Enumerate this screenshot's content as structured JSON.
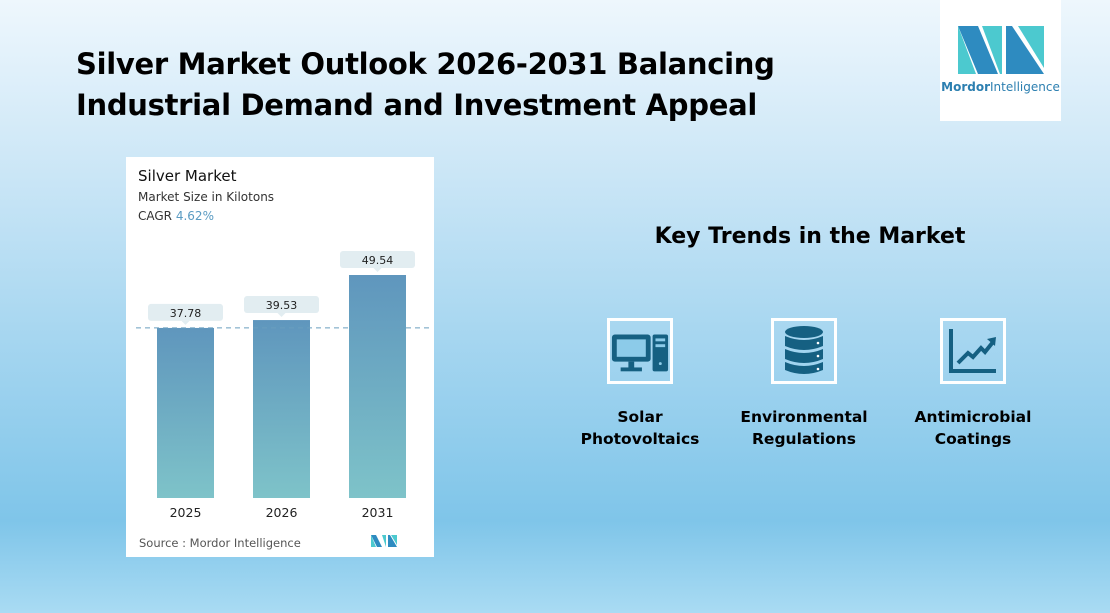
{
  "header": {
    "title_line1": "Silver Market Outlook 2026-2031 Balancing",
    "title_line2": "Industrial Demand and Investment Appeal"
  },
  "logo": {
    "text_bold": "Mordor",
    "text_light": "Intelligence"
  },
  "card": {
    "title": "Silver Market",
    "subtitle": "Market Size in Kilotons",
    "cagr_label": "CAGR",
    "cagr_value": "4.62%",
    "source": "Source :  Mordor Intelligence"
  },
  "chart_data": {
    "type": "bar",
    "title": "Silver Market",
    "ylabel": "Market Size in Kilotons",
    "categories": [
      "2025",
      "2026",
      "2031"
    ],
    "values": [
      37.78,
      39.53,
      49.54
    ],
    "ylim": [
      0,
      55
    ],
    "bar_color": "#5f96bd",
    "reference_line": 37.78,
    "grid": false
  },
  "trends": {
    "heading": "Key Trends in the Market",
    "items": [
      {
        "icon": "computer-icon",
        "line1": "Solar",
        "line2": "Photovoltaics"
      },
      {
        "icon": "database-icon",
        "line1": "Environmental",
        "line2": "Regulations"
      },
      {
        "icon": "growth-chart-icon",
        "line1": "Antimicrobial",
        "line2": "Coatings"
      }
    ]
  },
  "colors": {
    "icon": "#156082",
    "accent": "#5a9bc2",
    "logo_dark": "#2e8bc0",
    "logo_light": "#4cc9cf"
  }
}
